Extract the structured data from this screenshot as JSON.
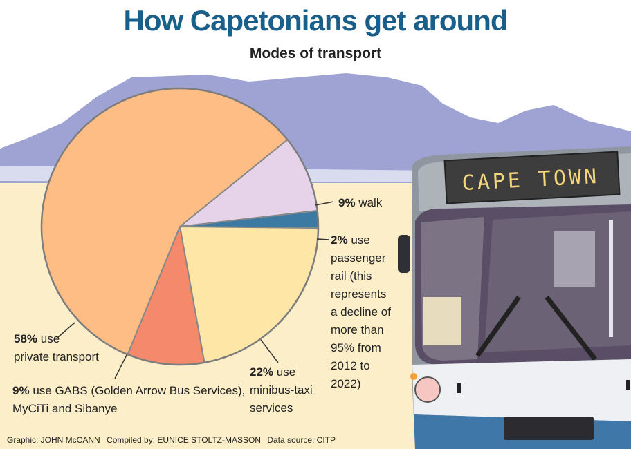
{
  "title": "How Capetonians get around",
  "subtitle": "Modes of transport",
  "bus_sign": "CAPE TOWN",
  "chart_data": {
    "type": "pie",
    "title": "How Capetonians get around",
    "subtitle": "Modes of transport",
    "slices": [
      {
        "label": "walk",
        "value": 9,
        "color": "#e6d3e9"
      },
      {
        "label": "use passenger rail (this represents a decline of more than 95% from 2012 to 2022)",
        "value": 2,
        "color": "#3d7aa3"
      },
      {
        "label": "use minibus-taxi services",
        "value": 22,
        "color": "#fde6a6"
      },
      {
        "label": "use GABS (Golden Arrow Bus Services), MyCiTi and Sibanye",
        "value": 9,
        "color": "#f4896b"
      },
      {
        "label": "use private transport",
        "value": 58,
        "color": "#fdbd85"
      }
    ]
  },
  "labels": {
    "walk": {
      "pct": "9%",
      "text": "walk"
    },
    "rail": {
      "pct": "2%",
      "first": "use",
      "lines": [
        "passenger",
        "rail (this",
        "represents",
        "a decline of",
        "more than",
        "95% from",
        "2012 to",
        "2022)"
      ]
    },
    "taxi": {
      "pct": "22%",
      "first": "use",
      "lines": [
        "minibus-taxi",
        "services"
      ]
    },
    "private": {
      "pct": "58%",
      "first": "use",
      "lines": [
        "private transport"
      ]
    },
    "gabs": {
      "pct": "9%",
      "first": "use GABS (Golden Arrow Bus Services),",
      "lines": [
        "MyCiTi and Sibanye"
      ]
    }
  },
  "credits": {
    "graphic": "Graphic: JOHN McCANN",
    "compiled": "Compiled by: EUNICE STOLTZ-MASSON",
    "source": "Data source: CITP"
  }
}
